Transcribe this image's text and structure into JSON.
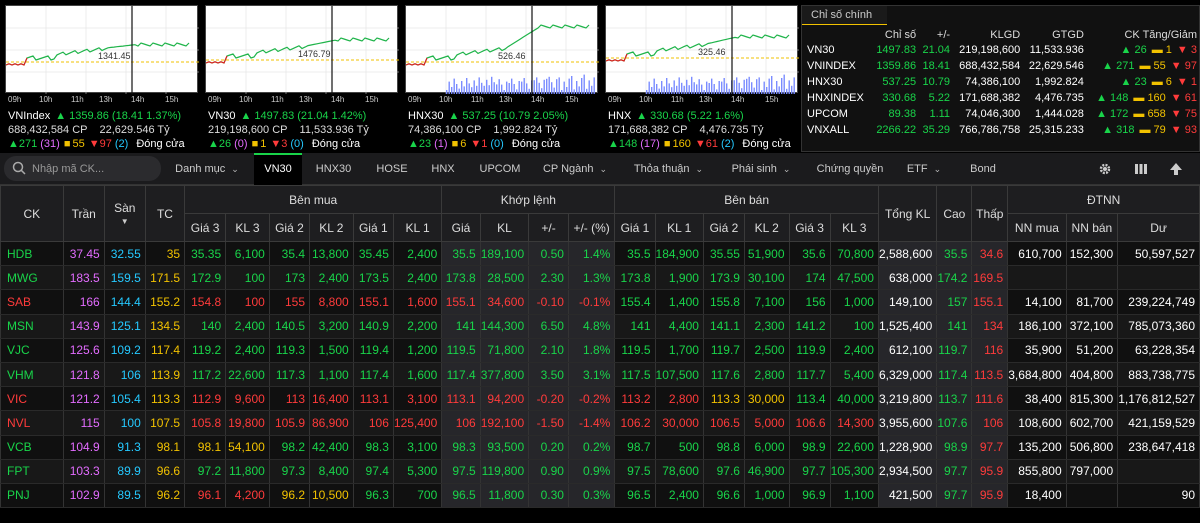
{
  "mini_charts": [
    {
      "name": "VNIndex",
      "ref_label": "1341.45",
      "ref_y": 56,
      "close_y": 38,
      "vol_bars": false,
      "arrow": "▲",
      "value": "1359.86 (18.41  1.37%)",
      "volume": "688,432,584 CP",
      "value_traded": "22,629.546 Tỷ",
      "up": "271",
      "ceil": "(31)",
      "flat": "55",
      "down": "97",
      "floor": "(2)",
      "status": "Đóng cửa"
    },
    {
      "name": "VN30",
      "ref_label": "1476.79",
      "ref_y": 54,
      "close_y": 33,
      "vol_bars": false,
      "arrow": "▲",
      "value": "1497.83 (21.04  1.42%)",
      "volume": "219,198,600 CP",
      "value_traded": "11,533.936 Tỷ",
      "up": "26",
      "ceil": "(0)",
      "flat": "1",
      "down": "3",
      "floor": "(0)",
      "status": "Đóng cửa"
    },
    {
      "name": "HNX30",
      "ref_label": "526.46",
      "ref_y": 56,
      "close_y": 20,
      "vol_bars": true,
      "arrow": "▲",
      "value": "537.25 (10.79  2.05%)",
      "volume": "74,386,100 CP",
      "value_traded": "1,992.824 Tỷ",
      "up": "23",
      "ceil": "(1)",
      "flat": "6",
      "down": "1",
      "floor": "(0)",
      "status": "Đóng cửa"
    },
    {
      "name": "HNX",
      "ref_label": "325.46",
      "ref_y": 52,
      "close_y": 30,
      "vol_bars": true,
      "arrow": "▲",
      "value": "330.68 (5.22  1.6%)",
      "volume": "171,688,382 CP",
      "value_traded": "4,476.735 Tỷ",
      "up": "148",
      "ceil": "(17)",
      "flat": "160",
      "down": "61",
      "floor": "(2)",
      "status": "Đóng cửa"
    }
  ],
  "time_labels": [
    "09h",
    "10h",
    "11h",
    "13h",
    "14h",
    "15h"
  ],
  "index_table": {
    "title": "Chỉ số chính",
    "headers": [
      "",
      "Chỉ số",
      "+/-",
      "KLGD",
      "GTGD",
      "CK Tăng/Giảm"
    ],
    "rows": [
      {
        "name": "VN30",
        "index": "1497.83",
        "change": "21.04",
        "volume": "219,198,600",
        "value": "11,533.936",
        "up": "26",
        "flat": "1",
        "down": "3"
      },
      {
        "name": "VNINDEX",
        "index": "1359.86",
        "change": "18.41",
        "volume": "688,432,584",
        "value": "22,629.546",
        "up": "271",
        "flat": "55",
        "down": "97"
      },
      {
        "name": "HNX30",
        "index": "537.25",
        "change": "10.79",
        "volume": "74,386,100",
        "value": "1,992.824",
        "up": "23",
        "flat": "6",
        "down": "1"
      },
      {
        "name": "HNXINDEX",
        "index": "330.68",
        "change": "5.22",
        "volume": "171,688,382",
        "value": "4,476.735",
        "up": "148",
        "flat": "160",
        "down": "61"
      },
      {
        "name": "UPCOM",
        "index": "89.38",
        "change": "1.11",
        "volume": "74,046,300",
        "value": "1,444.028",
        "up": "172",
        "flat": "658",
        "down": "75"
      },
      {
        "name": "VNXALL",
        "index": "2266.22",
        "change": "35.29",
        "volume": "766,786,758",
        "value": "25,315.233",
        "up": "318",
        "flat": "79",
        "down": "93"
      }
    ]
  },
  "toolbar": {
    "search_placeholder": "Nhập mã CK...",
    "tabs": [
      {
        "label": "Danh mục",
        "dropdown": true
      },
      {
        "label": "VN30",
        "dropdown": false,
        "active": true
      },
      {
        "label": "HNX30",
        "dropdown": false
      },
      {
        "label": "HOSE",
        "dropdown": false
      },
      {
        "label": "HNX",
        "dropdown": false
      },
      {
        "label": "UPCOM",
        "dropdown": false
      },
      {
        "label": "CP Ngành",
        "dropdown": true
      },
      {
        "label": "Thỏa thuận",
        "dropdown": true
      },
      {
        "label": "Phái sinh",
        "dropdown": true
      },
      {
        "label": "Chứng quyền",
        "dropdown": false
      },
      {
        "label": "ETF",
        "dropdown": true
      },
      {
        "label": "Bond",
        "dropdown": false
      }
    ],
    "icons": [
      "gear-icon",
      "columns-icon",
      "arrow-up-icon"
    ]
  },
  "grid": {
    "group_headers": {
      "ck": "CK",
      "tran": "Trần",
      "san": "Sàn",
      "tc": "TC",
      "buy": "Bên mua",
      "match": "Khớp lệnh",
      "sell": "Bên bán",
      "total": "Tổng KL",
      "high": "Cao",
      "low": "Thấp",
      "foreign": "ĐTNN"
    },
    "sub_headers": {
      "buy": [
        "Giá 3",
        "KL 3",
        "Giá 2",
        "KL 2",
        "Giá 1",
        "KL 1"
      ],
      "match": [
        "Giá",
        "KL",
        "+/-",
        "+/- (%)"
      ],
      "sell": [
        "Giá 1",
        "KL 1",
        "Giá 2",
        "KL 2",
        "Giá 3",
        "KL 3"
      ],
      "foreign": [
        "NN mua",
        "NN bán",
        "Dư"
      ]
    },
    "sort_arrow": "▼",
    "rows": [
      {
        "ck": "HDB",
        "tran": "37.45",
        "san": "32.55",
        "tc": "35",
        "b3": "35.35",
        "kb3": "6,100",
        "b2": "35.4",
        "kb2": "13,800",
        "b1": "35.45",
        "kb1": "2,400",
        "m": "35.5",
        "km": "189,100",
        "ch": "0.50",
        "pc": "1.4%",
        "s1": "35.5",
        "ks1": "184,900",
        "s2": "35.55",
        "ks2": "51,900",
        "s3": "35.6",
        "ks3": "70,800",
        "tot": "2,588,600",
        "hi": "35.5",
        "lo": "34.6",
        "nm": "610,700",
        "nb": "152,300",
        "du": "50,597,527",
        "cl": {
          "ck": "g",
          "b3": "g",
          "b2": "g",
          "b1": "g",
          "m": "g",
          "s1": "g",
          "s2": "g",
          "s3": "g",
          "hi": "g",
          "lo": "r"
        }
      },
      {
        "ck": "MWG",
        "tran": "183.5",
        "san": "159.5",
        "tc": "171.5",
        "b3": "172.9",
        "kb3": "100",
        "b2": "173",
        "kb2": "2,400",
        "b1": "173.5",
        "kb1": "2,400",
        "m": "173.8",
        "km": "28,500",
        "ch": "2.30",
        "pc": "1.3%",
        "s1": "173.8",
        "ks1": "1,900",
        "s2": "173.9",
        "ks2": "30,100",
        "s3": "174",
        "ks3": "47,500",
        "tot": "638,000",
        "hi": "174.2",
        "lo": "169.5",
        "nm": "",
        "nb": "",
        "du": "",
        "cl": {
          "ck": "g",
          "b3": "g",
          "b2": "g",
          "b1": "g",
          "m": "g",
          "s1": "g",
          "s2": "g",
          "s3": "g",
          "hi": "g",
          "lo": "r"
        }
      },
      {
        "ck": "SAB",
        "tran": "166",
        "san": "144.4",
        "tc": "155.2",
        "b3": "154.8",
        "kb3": "100",
        "b2": "155",
        "kb2": "8,800",
        "b1": "155.1",
        "kb1": "1,600",
        "m": "155.1",
        "km": "34,600",
        "ch": "-0.10",
        "pc": "-0.1%",
        "s1": "155.4",
        "ks1": "1,400",
        "s2": "155.8",
        "ks2": "7,100",
        "s3": "156",
        "ks3": "1,000",
        "tot": "149,100",
        "hi": "157",
        "lo": "155.1",
        "nm": "14,100",
        "nb": "81,700",
        "du": "239,224,749",
        "cl": {
          "ck": "r",
          "b3": "r",
          "b2": "r",
          "b1": "r",
          "m": "r",
          "s1": "g",
          "s2": "g",
          "s3": "g",
          "hi": "g",
          "lo": "r"
        }
      },
      {
        "ck": "MSN",
        "tran": "143.9",
        "san": "125.1",
        "tc": "134.5",
        "b3": "140",
        "kb3": "2,400",
        "b2": "140.5",
        "kb2": "3,200",
        "b1": "140.9",
        "kb1": "2,200",
        "m": "141",
        "km": "144,300",
        "ch": "6.50",
        "pc": "4.8%",
        "s1": "141",
        "ks1": "4,400",
        "s2": "141.1",
        "ks2": "2,300",
        "s3": "141.2",
        "ks3": "100",
        "tot": "1,525,400",
        "hi": "141",
        "lo": "134",
        "nm": "186,100",
        "nb": "372,100",
        "du": "785,073,360",
        "cl": {
          "ck": "g",
          "b3": "g",
          "b2": "g",
          "b1": "g",
          "m": "g",
          "s1": "g",
          "s2": "g",
          "s3": "g",
          "hi": "g",
          "lo": "r"
        }
      },
      {
        "ck": "VJC",
        "tran": "125.6",
        "san": "109.2",
        "tc": "117.4",
        "b3": "119.2",
        "kb3": "2,400",
        "b2": "119.3",
        "kb2": "1,500",
        "b1": "119.4",
        "kb1": "1,200",
        "m": "119.5",
        "km": "71,800",
        "ch": "2.10",
        "pc": "1.8%",
        "s1": "119.5",
        "ks1": "1,700",
        "s2": "119.7",
        "ks2": "2,500",
        "s3": "119.9",
        "ks3": "2,400",
        "tot": "612,100",
        "hi": "119.7",
        "lo": "116",
        "nm": "35,900",
        "nb": "51,200",
        "du": "63,228,354",
        "cl": {
          "ck": "g",
          "b3": "g",
          "b2": "g",
          "b1": "g",
          "m": "g",
          "s1": "g",
          "s2": "g",
          "s3": "g",
          "hi": "g",
          "lo": "r"
        }
      },
      {
        "ck": "VHM",
        "tran": "121.8",
        "san": "106",
        "tc": "113.9",
        "b3": "117.2",
        "kb3": "22,600",
        "b2": "117.3",
        "kb2": "1,100",
        "b1": "117.4",
        "kb1": "1,600",
        "m": "117.4",
        "km": "377,800",
        "ch": "3.50",
        "pc": "3.1%",
        "s1": "117.5",
        "ks1": "107,500",
        "s2": "117.6",
        "ks2": "2,800",
        "s3": "117.7",
        "ks3": "5,400",
        "tot": "6,329,000",
        "hi": "117.4",
        "lo": "113.5",
        "nm": "3,684,800",
        "nb": "404,800",
        "du": "883,738,775",
        "cl": {
          "ck": "g",
          "b3": "g",
          "b2": "g",
          "b1": "g",
          "m": "g",
          "s1": "g",
          "s2": "g",
          "s3": "g",
          "hi": "g",
          "lo": "r"
        }
      },
      {
        "ck": "VIC",
        "tran": "121.2",
        "san": "105.4",
        "tc": "113.3",
        "b3": "112.9",
        "kb3": "9,600",
        "b2": "113",
        "kb2": "16,400",
        "b1": "113.1",
        "kb1": "3,100",
        "m": "113.1",
        "km": "94,200",
        "ch": "-0.20",
        "pc": "-0.2%",
        "s1": "113.2",
        "ks1": "2,800",
        "s2": "113.3",
        "ks2": "30,000",
        "s3": "113.4",
        "ks3": "40,000",
        "tot": "3,219,800",
        "hi": "113.7",
        "lo": "111.6",
        "nm": "38,400",
        "nb": "815,300",
        "du": "1,176,812,527",
        "cl": {
          "ck": "r",
          "b3": "r",
          "b2": "r",
          "b1": "r",
          "m": "r",
          "s1": "r",
          "s2": "y",
          "ks2": "y",
          "s3": "g",
          "hi": "g",
          "lo": "r"
        }
      },
      {
        "ck": "NVL",
        "tran": "115",
        "san": "100",
        "tc": "107.5",
        "b3": "105.8",
        "kb3": "19,800",
        "b2": "105.9",
        "kb2": "86,900",
        "b1": "106",
        "kb1": "125,400",
        "m": "106",
        "km": "192,100",
        "ch": "-1.50",
        "pc": "-1.4%",
        "s1": "106.2",
        "ks1": "30,000",
        "s2": "106.5",
        "ks2": "5,000",
        "s3": "106.6",
        "ks3": "14,300",
        "tot": "3,955,600",
        "hi": "107.6",
        "lo": "106",
        "nm": "108,600",
        "nb": "602,700",
        "du": "421,159,529",
        "cl": {
          "ck": "r",
          "b3": "r",
          "b2": "r",
          "b1": "r",
          "m": "r",
          "s1": "r",
          "s2": "r",
          "s3": "r",
          "hi": "g",
          "lo": "r"
        }
      },
      {
        "ck": "VCB",
        "tran": "104.9",
        "san": "91.3",
        "tc": "98.1",
        "b3": "98.1",
        "kb3": "54,100",
        "b2": "98.2",
        "kb2": "42,400",
        "b1": "98.3",
        "kb1": "3,100",
        "m": "98.3",
        "km": "93,500",
        "ch": "0.20",
        "pc": "0.2%",
        "s1": "98.7",
        "ks1": "500",
        "s2": "98.8",
        "ks2": "6,000",
        "s3": "98.9",
        "ks3": "22,600",
        "tot": "1,228,900",
        "hi": "98.9",
        "lo": "97.7",
        "nm": "135,200",
        "nb": "506,800",
        "du": "238,647,418",
        "cl": {
          "ck": "g",
          "b3": "y",
          "kb3": "y",
          "b2": "g",
          "b1": "g",
          "m": "g",
          "s1": "g",
          "s2": "g",
          "s3": "g",
          "hi": "g",
          "lo": "r"
        }
      },
      {
        "ck": "FPT",
        "tran": "103.3",
        "san": "89.9",
        "tc": "96.6",
        "b3": "97.2",
        "kb3": "11,800",
        "b2": "97.3",
        "kb2": "8,400",
        "b1": "97.4",
        "kb1": "5,300",
        "m": "97.5",
        "km": "119,800",
        "ch": "0.90",
        "pc": "0.9%",
        "s1": "97.5",
        "ks1": "78,600",
        "s2": "97.6",
        "ks2": "46,900",
        "s3": "97.7",
        "ks3": "105,300",
        "tot": "2,934,500",
        "hi": "97.7",
        "lo": "95.9",
        "nm": "855,800",
        "nb": "797,000",
        "du": "",
        "cl": {
          "ck": "g",
          "b3": "g",
          "b2": "g",
          "b1": "g",
          "m": "g",
          "s1": "g",
          "s2": "g",
          "s3": "g",
          "hi": "g",
          "lo": "r"
        }
      },
      {
        "ck": "PNJ",
        "tran": "102.9",
        "san": "89.5",
        "tc": "96.2",
        "b3": "96.1",
        "kb3": "4,200",
        "b2": "96.2",
        "kb2": "10,500",
        "b1": "96.3",
        "kb1": "700",
        "m": "96.5",
        "km": "11,800",
        "ch": "0.30",
        "pc": "0.3%",
        "s1": "96.5",
        "ks1": "2,400",
        "s2": "96.6",
        "ks2": "1,000",
        "s3": "96.9",
        "ks3": "1,100",
        "tot": "421,500",
        "hi": "97.7",
        "lo": "95.9",
        "nm": "18,400",
        "nb": "",
        "du": "90",
        "cl": {
          "ck": "g",
          "b3": "r",
          "kb3": "r",
          "b2": "y",
          "kb2": "y",
          "b1": "g",
          "m": "g",
          "s1": "g",
          "s2": "g",
          "s3": "g",
          "hi": "g",
          "lo": "r"
        }
      }
    ]
  },
  "colors": {
    "up": "#19d44a",
    "down": "#ff3b3b",
    "ref": "#f2c200",
    "ceiling": "#e36cff",
    "floor": "#25c9ff"
  }
}
